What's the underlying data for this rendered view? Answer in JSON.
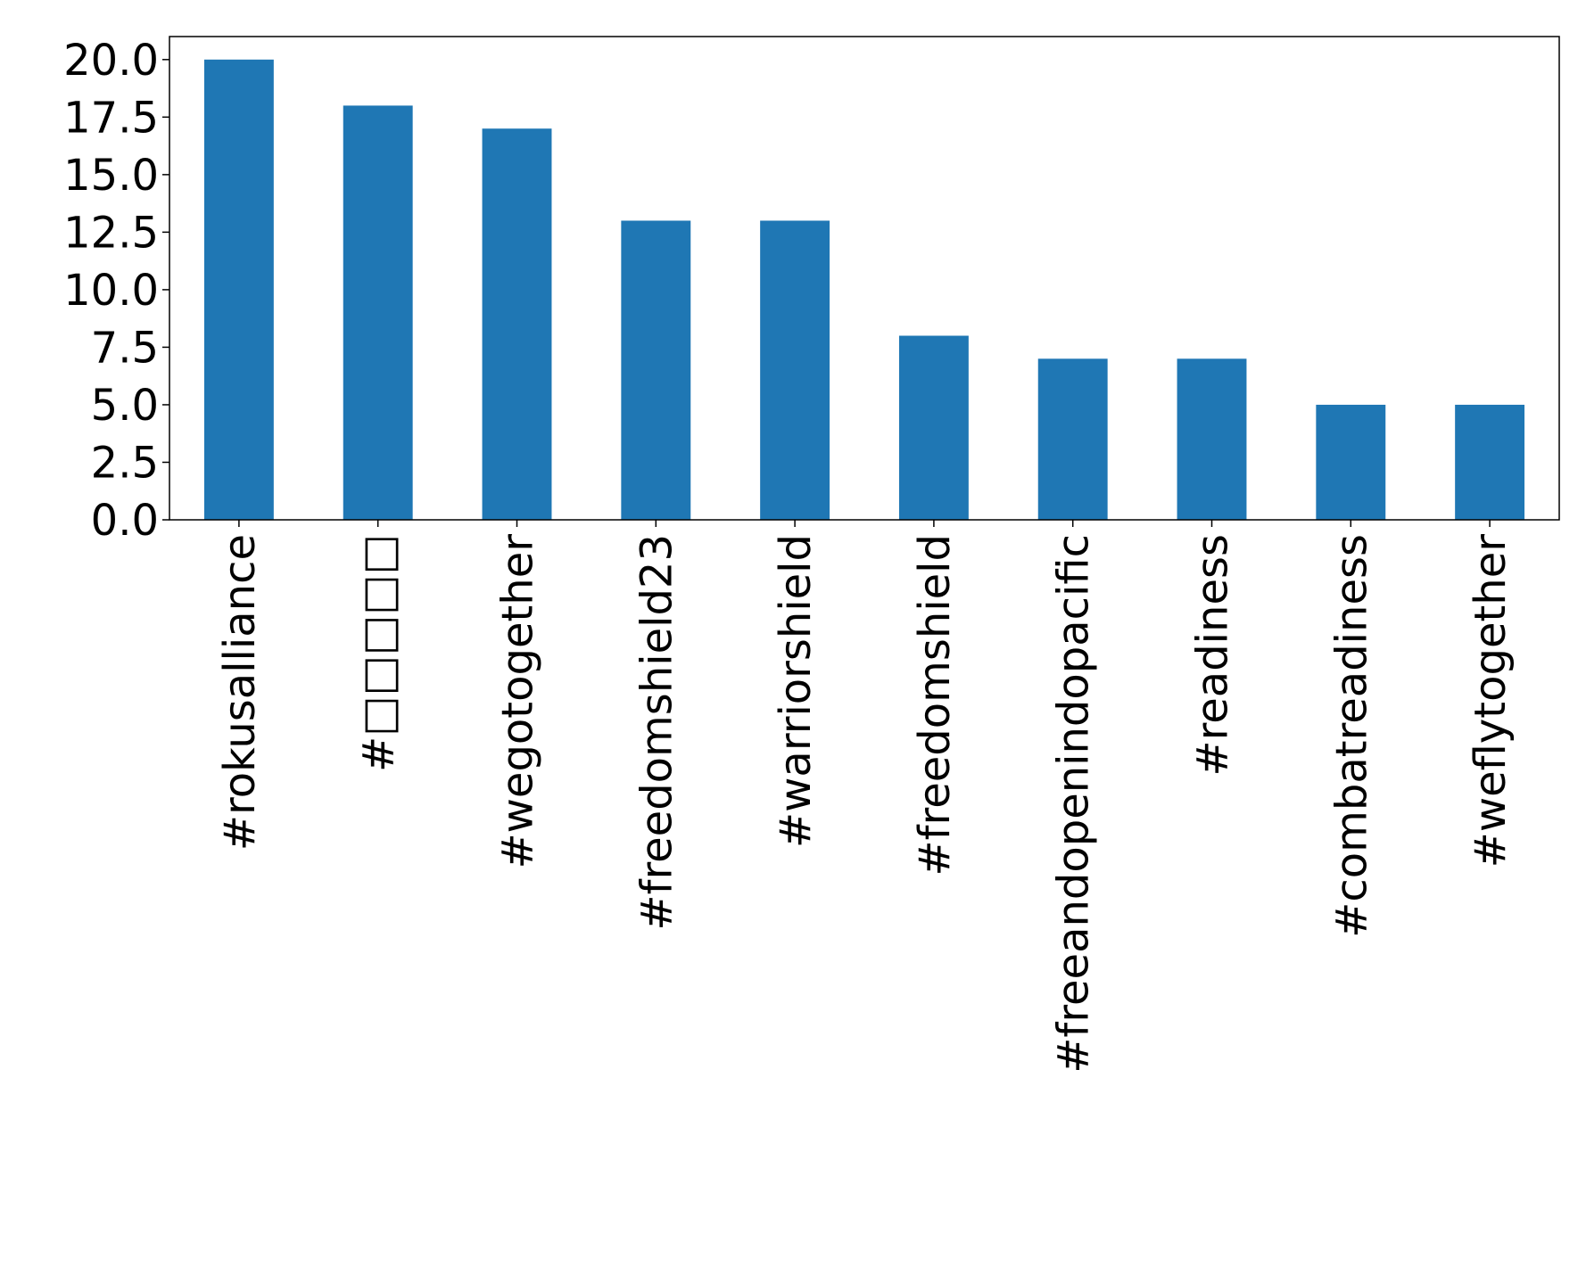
{
  "chart_data": {
    "type": "bar",
    "title": "",
    "xlabel": "",
    "ylabel": "",
    "categories": [
      "#rokusalliance",
      "#□□□□□",
      "#wegotogether",
      "#freedomshield23",
      "#warriorshield",
      "#freedomshield",
      "#freeandopenindopacific",
      "#readiness",
      "#combatreadiness",
      "#weflytogether"
    ],
    "values": [
      20,
      18,
      17,
      13,
      13,
      8,
      7,
      7,
      5,
      5
    ],
    "ylim": [
      0,
      21
    ],
    "yticks": [
      0.0,
      2.5,
      5.0,
      7.5,
      10.0,
      12.5,
      15.0,
      17.5,
      20.0
    ],
    "ytick_labels": [
      "0.0",
      "2.5",
      "5.0",
      "7.5",
      "10.0",
      "12.5",
      "15.0",
      "17.5",
      "20.0"
    ],
    "bar_color": "#1f77b4",
    "grid": false,
    "legend": "none"
  }
}
